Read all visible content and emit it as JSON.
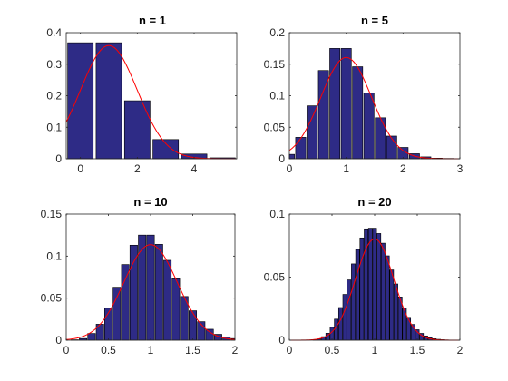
{
  "figure": {
    "background": "#ffffff"
  },
  "style": {
    "bar_fill": "#2e2b86",
    "bar_edge": "#000000",
    "curve": "#ff0000",
    "axis": "#262626"
  },
  "chart_data": [
    {
      "type": "bar",
      "title": "n = 1",
      "xlim": [
        -0.5,
        5.5
      ],
      "ylim": [
        0,
        0.4
      ],
      "xticks": [
        0,
        2,
        4
      ],
      "yticks": [
        0,
        0.1,
        0.2,
        0.3,
        0.4
      ],
      "bin_width": 0.9,
      "x": [
        0,
        1,
        2,
        3,
        4,
        5
      ],
      "values": [
        0.368,
        0.368,
        0.184,
        0.061,
        0.015,
        0.003
      ],
      "curve": {
        "type": "normal",
        "mean": 1,
        "sd": 1
      }
    },
    {
      "type": "bar",
      "title": "n = 5",
      "xlim": [
        0,
        3
      ],
      "ylim": [
        0,
        0.2
      ],
      "xticks": [
        0,
        1,
        2,
        3
      ],
      "yticks": [
        0,
        0.05,
        0.1,
        0.15,
        0.2
      ],
      "bin_width": 0.18,
      "x": [
        0,
        0.2,
        0.4,
        0.6,
        0.8,
        1.0,
        1.2,
        1.4,
        1.6,
        1.8,
        2.0,
        2.2,
        2.4,
        2.6,
        2.8
      ],
      "values": [
        0.007,
        0.034,
        0.084,
        0.14,
        0.175,
        0.175,
        0.146,
        0.104,
        0.065,
        0.036,
        0.018,
        0.008,
        0.003,
        0.001,
        0.0005
      ],
      "curve": {
        "type": "normal",
        "mean": 1,
        "sd": 0.447
      }
    },
    {
      "type": "bar",
      "title": "n = 10",
      "xlim": [
        0,
        2
      ],
      "ylim": [
        0,
        0.15
      ],
      "xticks": [
        0,
        0.5,
        1,
        1.5,
        2
      ],
      "yticks": [
        0,
        0.05,
        0.1,
        0.15
      ],
      "bin_width": 0.09,
      "x": [
        0.1,
        0.2,
        0.3,
        0.4,
        0.5,
        0.6,
        0.7,
        0.8,
        0.9,
        1.0,
        1.1,
        1.2,
        1.3,
        1.4,
        1.5,
        1.6,
        1.7,
        1.8,
        1.9,
        2.0
      ],
      "values": [
        0.0005,
        0.002,
        0.008,
        0.019,
        0.038,
        0.063,
        0.09,
        0.113,
        0.125,
        0.125,
        0.114,
        0.095,
        0.073,
        0.052,
        0.035,
        0.022,
        0.013,
        0.007,
        0.004,
        0.002
      ],
      "curve": {
        "type": "normal",
        "mean": 1,
        "sd": 0.316
      }
    },
    {
      "type": "bar",
      "title": "n = 20",
      "xlim": [
        0,
        2
      ],
      "ylim": [
        0,
        0.1
      ],
      "xticks": [
        0,
        0.5,
        1,
        1.5,
        2
      ],
      "yticks": [
        0,
        0.05,
        0.1
      ],
      "bin_width": 0.045,
      "x": [
        0.3,
        0.35,
        0.4,
        0.45,
        0.5,
        0.55,
        0.6,
        0.65,
        0.7,
        0.75,
        0.8,
        0.85,
        0.9,
        0.95,
        1.0,
        1.05,
        1.1,
        1.15,
        1.2,
        1.25,
        1.3,
        1.35,
        1.4,
        1.45,
        1.5,
        1.55,
        1.6,
        1.65,
        1.7,
        1.75,
        1.8,
        1.85
      ],
      "values": [
        0.0004,
        0.001,
        0.0028,
        0.0055,
        0.0102,
        0.0167,
        0.0259,
        0.0363,
        0.0478,
        0.0605,
        0.0719,
        0.0811,
        0.0883,
        0.0888,
        0.0888,
        0.0846,
        0.0769,
        0.0669,
        0.0557,
        0.0446,
        0.0343,
        0.0254,
        0.0181,
        0.0125,
        0.0083,
        0.0054,
        0.0034,
        0.002,
        0.0012,
        0.0007,
        0.0004,
        0.0002
      ],
      "curve": {
        "type": "normal",
        "mean": 1,
        "sd": 0.2236
      }
    }
  ]
}
